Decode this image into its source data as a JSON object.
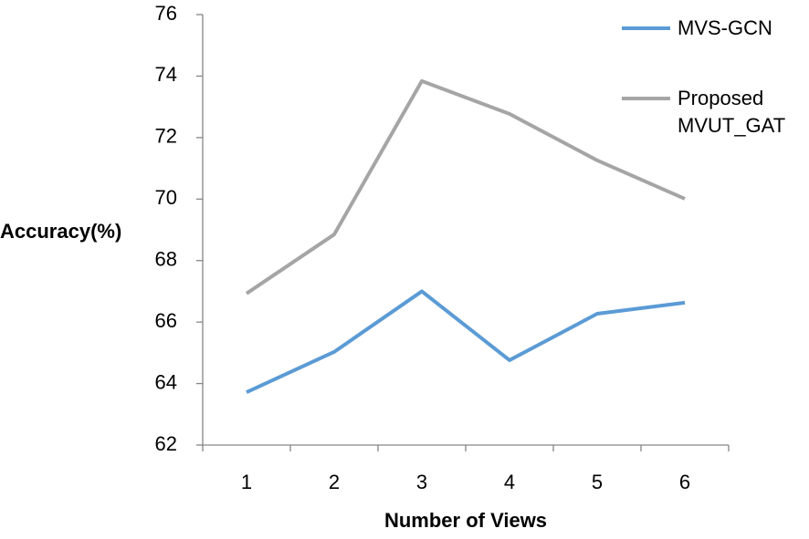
{
  "chart_data": {
    "type": "line",
    "x_label": "Number of Views",
    "y_label": "Accuracy(%)",
    "categories": [
      "1",
      "2",
      "3",
      "4",
      "5",
      "6"
    ],
    "series": [
      {
        "name": "MVS-GCN",
        "color": "#5b9bd5",
        "values": [
          63.72,
          65.03,
          67.0,
          64.76,
          66.27,
          66.63
        ]
      },
      {
        "name": "Proposed MVUT_GAT",
        "color": "#a5a5a5",
        "values": [
          66.93,
          68.85,
          73.84,
          72.77,
          71.26,
          70.01
        ]
      }
    ],
    "ylim": [
      62,
      76
    ],
    "yticks": [
      62,
      64,
      66,
      68,
      70,
      72,
      74,
      76
    ]
  }
}
